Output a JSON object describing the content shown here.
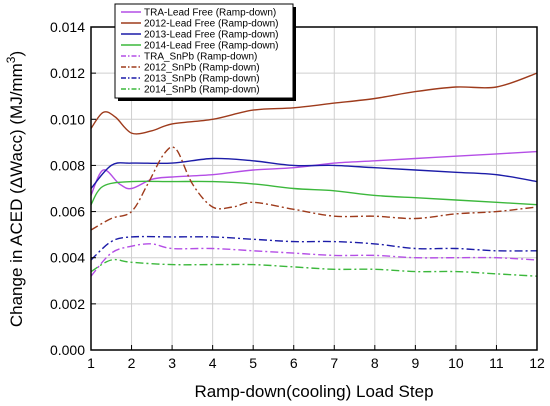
{
  "chart_data": {
    "type": "line",
    "xlabel": "Ramp-down(cooling) Load Step",
    "ylabel": "Change in ACED (ΔWacc) (MJ/mm³)",
    "xlim": [
      1,
      12
    ],
    "ylim": [
      0,
      0.014
    ],
    "x_ticks": [
      1,
      2,
      3,
      4,
      5,
      6,
      7,
      8,
      9,
      10,
      11,
      12
    ],
    "y_ticks": [
      "0.000",
      "0.002",
      "0.004",
      "0.006",
      "0.008",
      "0.010",
      "0.012",
      "0.014"
    ],
    "grid": true,
    "legend_position": "top-left",
    "series": [
      {
        "name": "TRA-Lead Free (Ramp-down)",
        "color": "#b44ee6",
        "dash": "solid",
        "points": [
          [
            1,
            0.0067
          ],
          [
            1.3,
            0.0078
          ],
          [
            1.7,
            0.0072
          ],
          [
            2,
            0.007
          ],
          [
            2.5,
            0.0074
          ],
          [
            3,
            0.0075
          ],
          [
            4,
            0.0076
          ],
          [
            5,
            0.0078
          ],
          [
            6,
            0.0079
          ],
          [
            7,
            0.0081
          ],
          [
            8,
            0.0082
          ],
          [
            9,
            0.0083
          ],
          [
            10,
            0.0084
          ],
          [
            11,
            0.0085
          ],
          [
            12,
            0.0086
          ]
        ]
      },
      {
        "name": "2012-Lead Free (Ramp-down)",
        "color": "#9e3b1c",
        "dash": "solid",
        "points": [
          [
            1,
            0.0096
          ],
          [
            1.3,
            0.0103
          ],
          [
            1.6,
            0.0101
          ],
          [
            2,
            0.0094
          ],
          [
            2.5,
            0.0095
          ],
          [
            3,
            0.0098
          ],
          [
            4,
            0.01
          ],
          [
            5,
            0.0104
          ],
          [
            6,
            0.0105
          ],
          [
            7,
            0.0107
          ],
          [
            8,
            0.0109
          ],
          [
            9,
            0.0112
          ],
          [
            10,
            0.0114
          ],
          [
            11,
            0.0114
          ],
          [
            12,
            0.012
          ]
        ]
      },
      {
        "name": "2013-Lead Free (Ramp-down)",
        "color": "#1c1ca8",
        "dash": "solid",
        "points": [
          [
            1,
            0.007
          ],
          [
            1.5,
            0.008
          ],
          [
            2,
            0.0081
          ],
          [
            3,
            0.0081
          ],
          [
            4,
            0.0083
          ],
          [
            5,
            0.0082
          ],
          [
            6,
            0.008
          ],
          [
            7,
            0.008
          ],
          [
            8,
            0.0079
          ],
          [
            9,
            0.0078
          ],
          [
            10,
            0.0077
          ],
          [
            11,
            0.0076
          ],
          [
            12,
            0.0073
          ]
        ]
      },
      {
        "name": "2014-Lead Free (Ramp-down)",
        "color": "#3cb83c",
        "dash": "solid",
        "points": [
          [
            1,
            0.0063
          ],
          [
            1.3,
            0.0071
          ],
          [
            2,
            0.0073
          ],
          [
            3,
            0.0073
          ],
          [
            4,
            0.0073
          ],
          [
            5,
            0.0072
          ],
          [
            6,
            0.007
          ],
          [
            7,
            0.0069
          ],
          [
            8,
            0.0067
          ],
          [
            9,
            0.0066
          ],
          [
            10,
            0.0065
          ],
          [
            11,
            0.0064
          ],
          [
            12,
            0.0063
          ]
        ]
      },
      {
        "name": "TRA_SnPb (Ramp-down)",
        "color": "#b44ee6",
        "dash": "dashdot",
        "points": [
          [
            1,
            0.0032
          ],
          [
            1.5,
            0.0042
          ],
          [
            2,
            0.0045
          ],
          [
            2.5,
            0.0046
          ],
          [
            3,
            0.0044
          ],
          [
            4,
            0.0044
          ],
          [
            5,
            0.0043
          ],
          [
            6,
            0.0042
          ],
          [
            7,
            0.0041
          ],
          [
            8,
            0.0041
          ],
          [
            9,
            0.004
          ],
          [
            10,
            0.004
          ],
          [
            11,
            0.004
          ],
          [
            12,
            0.0039
          ]
        ]
      },
      {
        "name": "2012_SnPb (Ramp-down)",
        "color": "#9e3b1c",
        "dash": "dashdot",
        "points": [
          [
            1,
            0.0052
          ],
          [
            1.5,
            0.0057
          ],
          [
            2,
            0.006
          ],
          [
            2.4,
            0.0072
          ],
          [
            2.8,
            0.0085
          ],
          [
            3.1,
            0.0087
          ],
          [
            3.5,
            0.0072
          ],
          [
            4,
            0.0062
          ],
          [
            4.5,
            0.0062
          ],
          [
            5,
            0.0064
          ],
          [
            6,
            0.0061
          ],
          [
            7,
            0.0058
          ],
          [
            8,
            0.0058
          ],
          [
            9,
            0.0057
          ],
          [
            10,
            0.0059
          ],
          [
            11,
            0.006
          ],
          [
            12,
            0.0062
          ]
        ]
      },
      {
        "name": "2013_SnPb (Ramp-down)",
        "color": "#1c1ca8",
        "dash": "dashdot",
        "points": [
          [
            1,
            0.0039
          ],
          [
            1.5,
            0.0047
          ],
          [
            2,
            0.0049
          ],
          [
            3,
            0.0049
          ],
          [
            4,
            0.0049
          ],
          [
            5,
            0.0048
          ],
          [
            6,
            0.0047
          ],
          [
            7,
            0.0047
          ],
          [
            8,
            0.0046
          ],
          [
            9,
            0.0044
          ],
          [
            10,
            0.0044
          ],
          [
            11,
            0.0043
          ],
          [
            12,
            0.0043
          ]
        ]
      },
      {
        "name": "2014_SnPb (Ramp-down)",
        "color": "#3cb83c",
        "dash": "dashdot",
        "points": [
          [
            1,
            0.0034
          ],
          [
            1.5,
            0.0039
          ],
          [
            2,
            0.0038
          ],
          [
            3,
            0.0037
          ],
          [
            4,
            0.0037
          ],
          [
            5,
            0.0037
          ],
          [
            6,
            0.0036
          ],
          [
            7,
            0.0035
          ],
          [
            8,
            0.0035
          ],
          [
            9,
            0.0034
          ],
          [
            10,
            0.0034
          ],
          [
            11,
            0.0033
          ],
          [
            12,
            0.0032
          ]
        ]
      }
    ]
  }
}
